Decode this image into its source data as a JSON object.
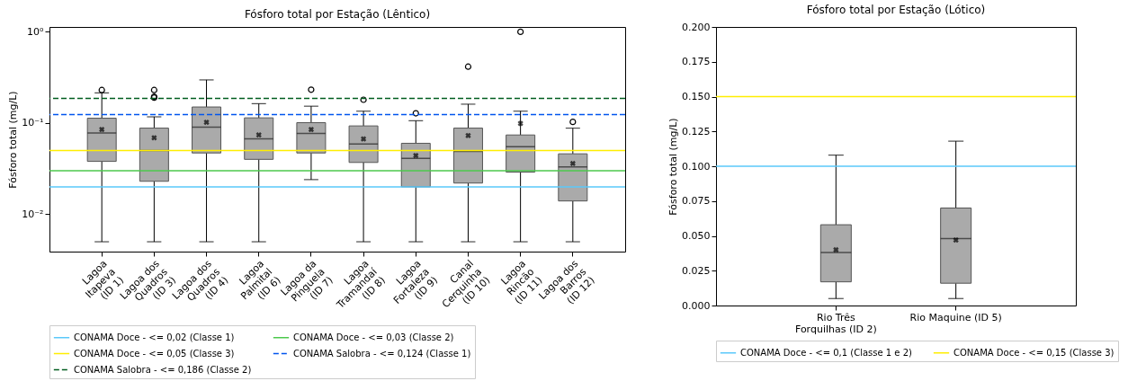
{
  "chart_data": [
    {
      "type": "box",
      "title": "Fósforo total por Estação (Lêntico)",
      "ylabel": "Fósforo total (mg/L)",
      "log": true,
      "categories": [
        "Lagoa\nItapeva\n(ID 1)",
        "Lagoa dos\nQuadros\n(ID 3)",
        "Lagoa dos\nQuadros\n(ID 4)",
        "Lagoa\nPalmital\n(ID 6)",
        "Lagoa da\nPinguela\n(ID 7)",
        "Lagoa\nTramandaí\n(ID 8)",
        "Lagoa\nFortaleza\n(ID 9)",
        "Canal\nCerquinha\n(ID 10)",
        "Lagoa\nRincão\n(ID 11)",
        "Lagoa dos\nBarros\n(ID 12)"
      ],
      "ylim": [
        0.0039,
        1.13
      ],
      "yticks": [
        {
          "value": 0.01,
          "label": "10⁻²"
        },
        {
          "value": 0.1,
          "label": "10⁻¹"
        },
        {
          "value": 1,
          "label": "10⁰"
        }
      ],
      "series": [
        {
          "color": "#aaaaaa",
          "boxes": [
            {
              "low": 0.005,
              "q1": 0.038,
              "median": 0.078,
              "q3": 0.113,
              "high": 0.214,
              "mean": 0.085,
              "outliers": [
                0.23
              ]
            },
            {
              "low": 0.005,
              "q1": 0.023,
              "median": 0.05,
              "q3": 0.088,
              "high": 0.117,
              "mean": 0.069,
              "outliers": [
                0.23,
                0.19,
                0.195
              ]
            },
            {
              "low": 0.005,
              "q1": 0.047,
              "median": 0.09,
              "q3": 0.15,
              "high": 0.297,
              "mean": 0.102
            },
            {
              "low": 0.005,
              "q1": 0.04,
              "median": 0.067,
              "q3": 0.114,
              "high": 0.163,
              "mean": 0.074
            },
            {
              "low": 0.024,
              "q1": 0.047,
              "median": 0.077,
              "q3": 0.101,
              "high": 0.153,
              "mean": 0.085,
              "outliers": [
                0.232
              ]
            },
            {
              "low": 0.005,
              "q1": 0.037,
              "median": 0.059,
              "q3": 0.093,
              "high": 0.135,
              "mean": 0.067,
              "outliers": [
                0.18
              ]
            },
            {
              "low": 0.005,
              "q1": 0.02,
              "median": 0.041,
              "q3": 0.06,
              "high": 0.106,
              "mean": 0.044,
              "outliers": [
                0.128
              ]
            },
            {
              "low": 0.005,
              "q1": 0.022,
              "median": 0.049,
              "q3": 0.088,
              "high": 0.161,
              "mean": 0.073,
              "outliers": [
                0.415
              ]
            },
            {
              "low": 0.005,
              "q1": 0.029,
              "median": 0.055,
              "q3": 0.074,
              "high": 0.135,
              "mean": 0.099,
              "outliers": [
                1.0
              ]
            },
            {
              "low": 0.005,
              "q1": 0.014,
              "median": 0.033,
              "q3": 0.046,
              "high": 0.088,
              "mean": 0.036,
              "outliers": [
                0.103
              ]
            }
          ]
        }
      ],
      "ref_lines": [
        {
          "axis": "y",
          "value": 0.02,
          "label": "CONAMA Doce - <= 0,02 (Classe 1)",
          "color": "#5ac8fa",
          "line_style": "solid"
        },
        {
          "axis": "y",
          "value": 0.03,
          "label": "CONAMA Doce - <= 0,03 (Classe 2)",
          "color": "#4cc94c",
          "line_style": "solid"
        },
        {
          "axis": "y",
          "value": 0.05,
          "label": "CONAMA Doce - <= 0,05 (Classe 3)",
          "color": "#ffee00",
          "line_style": "solid"
        },
        {
          "axis": "y",
          "value": 0.124,
          "label": "CONAMA Salobra - <= 0,124 (Classe 1)",
          "color": "#0055ee",
          "line_style": "dashed"
        },
        {
          "axis": "y",
          "value": 0.186,
          "label": "CONAMA Salobra - <= 0,186 (Classe 2)",
          "color": "#005c1e",
          "line_style": "dashed"
        }
      ],
      "legend": "bottom"
    },
    {
      "type": "box",
      "title": "Fósforo total por Estação (Lótico)",
      "ylabel": "Fósforo total (mg/L)",
      "categories": [
        "Rio Três\nForquilhas (ID 2)",
        "Rio Maquine (ID 5)"
      ],
      "ylim": [
        0,
        0.2
      ],
      "yticks": [
        {
          "value": 0,
          "label": "0.000"
        },
        {
          "value": 0.025,
          "label": "0.025"
        },
        {
          "value": 0.05,
          "label": "0.050"
        },
        {
          "value": 0.075,
          "label": "0.075"
        },
        {
          "value": 0.1,
          "label": "0.100"
        },
        {
          "value": 0.125,
          "label": "0.125"
        },
        {
          "value": 0.15,
          "label": "0.150"
        },
        {
          "value": 0.175,
          "label": "0.175"
        },
        {
          "value": 0.2,
          "label": "0.200"
        }
      ],
      "series": [
        {
          "color": "#aaaaaa",
          "boxes": [
            {
              "low": 0.005,
              "q1": 0.017,
              "median": 0.038,
              "q3": 0.058,
              "high": 0.108,
              "mean": 0.04
            },
            {
              "low": 0.005,
              "q1": 0.016,
              "median": 0.048,
              "q3": 0.07,
              "high": 0.118,
              "mean": 0.047
            }
          ]
        }
      ],
      "ref_lines": [
        {
          "axis": "y",
          "value": 0.1,
          "label": "CONAMA Doce - <= 0,1 (Classe 1 e 2)",
          "color": "#5ac8fa",
          "line_style": "solid"
        },
        {
          "axis": "y",
          "value": 0.15,
          "label": "CONAMA Doce - <= 0,15 (Classe 3)",
          "color": "#ffee00",
          "line_style": "solid"
        }
      ],
      "legend": "bottom"
    }
  ]
}
